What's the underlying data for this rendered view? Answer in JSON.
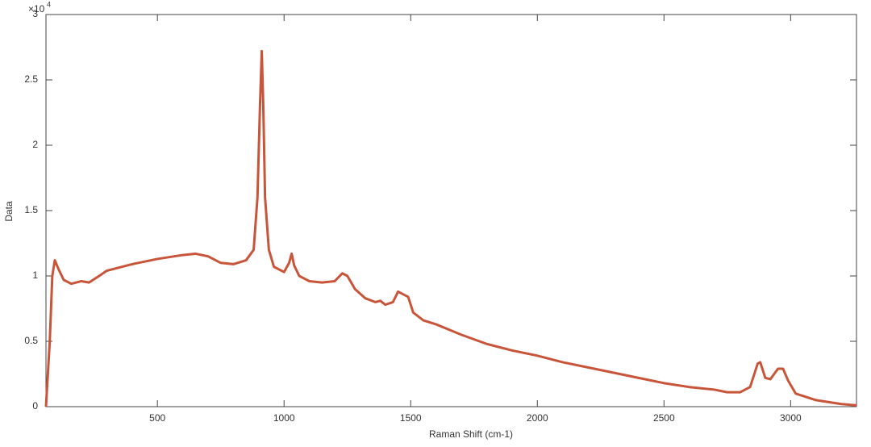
{
  "chart_data": {
    "type": "line",
    "x_label": "Raman Shift (cm-1)",
    "y_label": "Data",
    "y_multiplier": {
      "base": "×10",
      "exponent": "4"
    },
    "x": [
      60,
      75,
      85,
      95,
      110,
      130,
      160,
      200,
      230,
      270,
      300,
      400,
      500,
      600,
      650,
      700,
      750,
      800,
      850,
      880,
      895,
      905,
      912,
      918,
      925,
      940,
      960,
      1000,
      1020,
      1030,
      1040,
      1060,
      1100,
      1150,
      1200,
      1230,
      1250,
      1280,
      1320,
      1360,
      1380,
      1400,
      1430,
      1450,
      1470,
      1490,
      1510,
      1550,
      1600,
      1700,
      1800,
      1900,
      2000,
      2100,
      2200,
      2300,
      2400,
      2500,
      2600,
      2700,
      2750,
      2800,
      2840,
      2870,
      2880,
      2900,
      2920,
      2950,
      2970,
      2990,
      3020,
      3100,
      3200,
      3260
    ],
    "series": [
      {
        "color": "#c8553a",
        "values": [
          0,
          0.5,
          1.0,
          1.12,
          1.05,
          0.97,
          0.94,
          0.96,
          0.95,
          1.0,
          1.04,
          1.09,
          1.13,
          1.16,
          1.17,
          1.15,
          1.1,
          1.09,
          1.12,
          1.2,
          1.6,
          2.3,
          2.72,
          2.3,
          1.6,
          1.2,
          1.07,
          1.03,
          1.1,
          1.17,
          1.08,
          1.0,
          0.96,
          0.95,
          0.96,
          1.02,
          1.0,
          0.9,
          0.83,
          0.8,
          0.81,
          0.78,
          0.8,
          0.88,
          0.86,
          0.84,
          0.72,
          0.66,
          0.63,
          0.55,
          0.48,
          0.43,
          0.39,
          0.34,
          0.3,
          0.26,
          0.22,
          0.18,
          0.15,
          0.13,
          0.11,
          0.11,
          0.15,
          0.33,
          0.34,
          0.22,
          0.21,
          0.29,
          0.29,
          0.2,
          0.1,
          0.05,
          0.02,
          0.01
        ]
      }
    ],
    "xlim": [
      60,
      3260
    ],
    "ylim": [
      0,
      3
    ],
    "xticks": [
      500,
      1000,
      1500,
      2000,
      2500,
      3000
    ],
    "yticks": [
      0,
      0.5,
      1,
      1.5,
      2,
      2.5,
      3
    ],
    "grid": false
  }
}
